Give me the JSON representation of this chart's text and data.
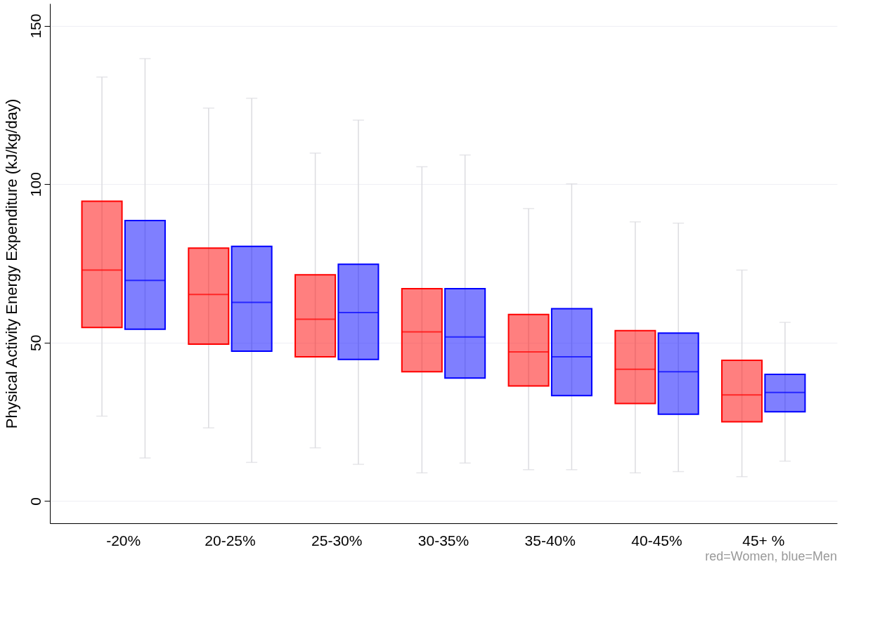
{
  "chart_data": {
    "type": "box",
    "categories": [
      "-20%",
      "20-25%",
      "25-30%",
      "30-35%",
      "35-40%",
      "40-45%",
      "45+ %"
    ],
    "ylabel": "Physical Activity Energy Expenditure (kJ/kg/day)",
    "ylim": [
      -7,
      157
    ],
    "yticks": [
      0,
      50,
      100,
      150
    ],
    "grid": "y",
    "annotations": [
      "red=Women, blue=Men"
    ],
    "series": [
      {
        "color": "#ff0000",
        "boxes": [
          {
            "low": 26.8,
            "q1": 54.8,
            "median": 72.9,
            "q3": 94.6,
            "high": 133.8
          },
          {
            "low": 23.1,
            "q1": 49.5,
            "median": 65.2,
            "q3": 79.8,
            "high": 124.0
          },
          {
            "low": 16.8,
            "q1": 45.5,
            "median": 57.4,
            "q3": 71.4,
            "high": 109.8
          },
          {
            "low": 8.9,
            "q1": 40.8,
            "median": 53.4,
            "q3": 67.0,
            "high": 105.5
          },
          {
            "low": 9.9,
            "q1": 36.3,
            "median": 47.1,
            "q3": 58.9,
            "high": 92.3
          },
          {
            "low": 8.9,
            "q1": 30.8,
            "median": 41.6,
            "q3": 53.8,
            "high": 88.1
          },
          {
            "low": 7.7,
            "q1": 25.0,
            "median": 33.5,
            "q3": 44.4,
            "high": 72.9
          }
        ]
      },
      {
        "color": "#0000ff",
        "boxes": [
          {
            "low": 13.6,
            "q1": 54.2,
            "median": 69.6,
            "q3": 88.5,
            "high": 139.6
          },
          {
            "low": 12.2,
            "q1": 47.3,
            "median": 62.7,
            "q3": 80.4,
            "high": 127.1
          },
          {
            "low": 11.6,
            "q1": 44.7,
            "median": 59.5,
            "q3": 74.7,
            "high": 120.2
          },
          {
            "low": 12.0,
            "q1": 38.8,
            "median": 51.8,
            "q3": 67.0,
            "high": 109.2
          },
          {
            "low": 9.9,
            "q1": 33.3,
            "median": 45.5,
            "q3": 60.7,
            "high": 100.1
          },
          {
            "low": 9.3,
            "q1": 27.4,
            "median": 40.8,
            "q3": 53.0,
            "high": 87.7
          },
          {
            "low": 12.6,
            "q1": 28.2,
            "median": 34.3,
            "q3": 40.0,
            "high": 56.4
          }
        ]
      }
    ]
  }
}
